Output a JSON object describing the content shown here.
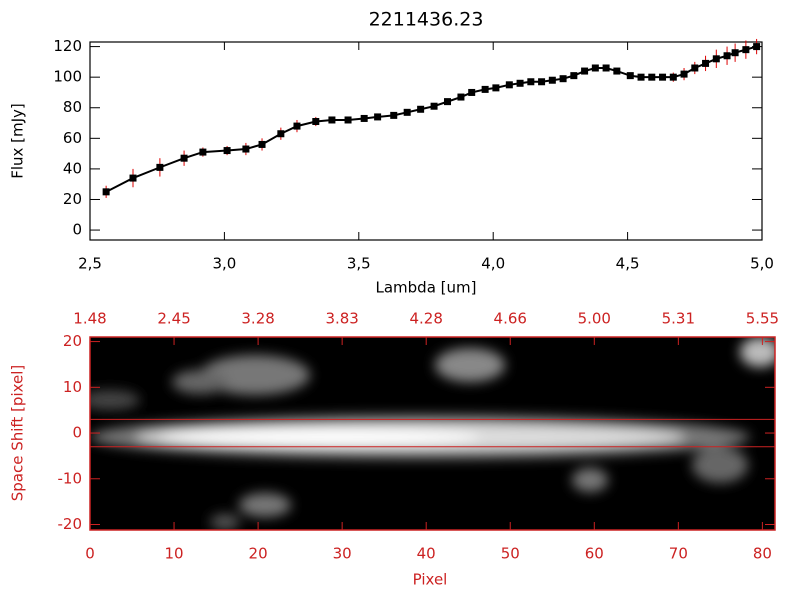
{
  "chart_data": [
    {
      "type": "line",
      "title": "2211436.23",
      "xlabel": "Lambda [um]",
      "ylabel": "Flux [mJy]",
      "color": "#000000",
      "error_color": "#dd0000",
      "x": [
        2.56,
        2.66,
        2.76,
        2.85,
        2.92,
        3.01,
        3.08,
        3.14,
        3.21,
        3.27,
        3.34,
        3.4,
        3.46,
        3.52,
        3.57,
        3.63,
        3.68,
        3.73,
        3.78,
        3.83,
        3.88,
        3.92,
        3.97,
        4.01,
        4.06,
        4.1,
        4.14,
        4.18,
        4.22,
        4.26,
        4.3,
        4.34,
        4.38,
        4.42,
        4.46,
        4.51,
        4.55,
        4.59,
        4.63,
        4.67,
        4.71,
        4.75,
        4.79,
        4.83,
        4.87,
        4.9,
        4.94,
        4.98
      ],
      "values": [
        25,
        34,
        41,
        47,
        51,
        52,
        53,
        56,
        63,
        68,
        71,
        72,
        72,
        73,
        74,
        75,
        77,
        79,
        81,
        84,
        87,
        90,
        92,
        93,
        95,
        96,
        97,
        97,
        98,
        99,
        101,
        104,
        106,
        106,
        104,
        101,
        100,
        100,
        100,
        100,
        102,
        106,
        109,
        112,
        114,
        116,
        118,
        120
      ],
      "errors": [
        4,
        6,
        6,
        5,
        3,
        3,
        4,
        4,
        4,
        4,
        3,
        2,
        1.5,
        1.5,
        1.5,
        1.5,
        1.5,
        1.5,
        1.5,
        1.5,
        1.5,
        1.5,
        1.5,
        1.5,
        1.5,
        1.5,
        1.5,
        1.5,
        1.5,
        1.5,
        2,
        2,
        2,
        2,
        2,
        2,
        2,
        2,
        2,
        3,
        4,
        4,
        5,
        6,
        6,
        6,
        6,
        5
      ],
      "xlim": [
        2.5,
        5.0
      ],
      "xticks": [
        {
          "value": 2.5,
          "label": "2,5"
        },
        {
          "value": 3.0,
          "label": "3,0"
        },
        {
          "value": 3.5,
          "label": "3,5"
        },
        {
          "value": 4.0,
          "label": "4,0"
        },
        {
          "value": 4.5,
          "label": "4,5"
        },
        {
          "value": 5.0,
          "label": "5,0"
        }
      ],
      "ylim": [
        -6.5,
        123
      ],
      "yticks": [
        0,
        20,
        40,
        60,
        80,
        100,
        120
      ]
    },
    {
      "type": "image",
      "xlabel": "Pixel",
      "ylabel": "Space Shift [pixel]",
      "color": "#cc2222",
      "xlim": [
        0,
        81.5
      ],
      "xticks": [
        0,
        10,
        20,
        30,
        40,
        50,
        60,
        70,
        80
      ],
      "top_tick_labels": [
        "1.48",
        "2.45",
        "3.28",
        "3.83",
        "4.28",
        "4.66",
        "5.00",
        "5.31",
        "5.55"
      ],
      "ylim": [
        -21.2,
        21
      ],
      "yticks": [
        -20,
        -10,
        0,
        10,
        20
      ],
      "hlines": [
        3,
        -3
      ]
    }
  ]
}
